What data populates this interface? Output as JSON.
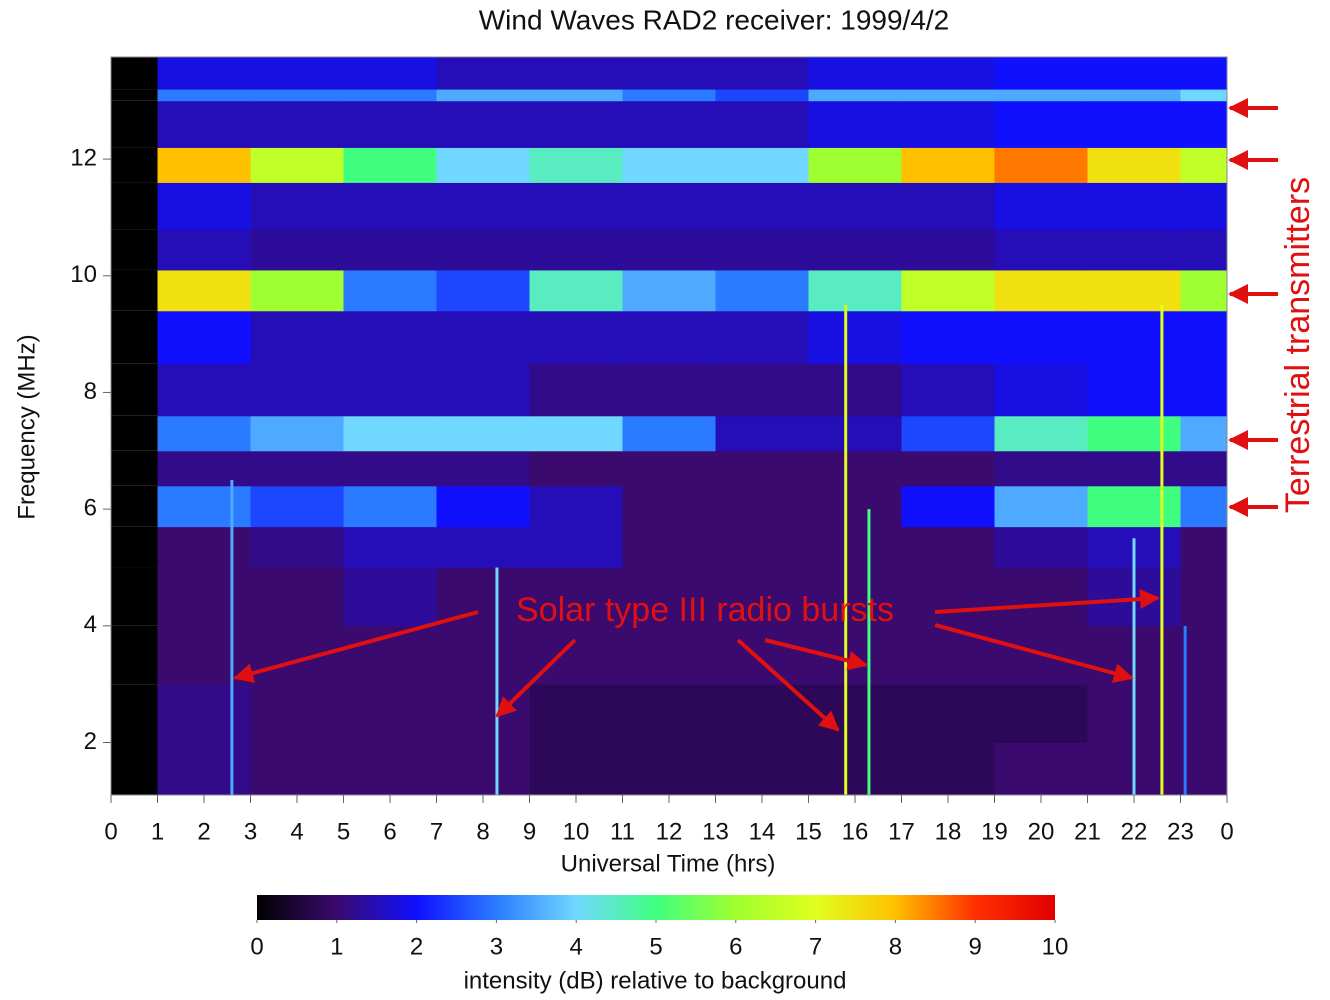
{
  "chart_data": {
    "type": "heatmap",
    "title": "Wind Waves RAD2 receiver: 1999/4/2",
    "x_label": "Universal Time (hrs)",
    "y_label": "Frequency (MHz)",
    "colorbar_label": "intensity (dB) relative to background",
    "xlim": [
      0,
      24
    ],
    "ylim": [
      1.1,
      13.75
    ],
    "xticks": [
      0,
      1,
      2,
      3,
      4,
      5,
      6,
      7,
      8,
      9,
      10,
      11,
      12,
      13,
      14,
      15,
      16,
      17,
      18,
      19,
      20,
      21,
      22,
      23,
      {
        "value": 24,
        "label": "0"
      }
    ],
    "yticks": [
      2,
      4,
      6,
      8,
      10,
      12
    ],
    "clim": [
      0,
      10
    ],
    "cticks": [
      0,
      1,
      2,
      3,
      4,
      5,
      6,
      7,
      8,
      9,
      10
    ],
    "colormap": [
      "#000000",
      "#3a0a6e",
      "#1010ff",
      "#2a7bff",
      "#70d8ff",
      "#40ff80",
      "#a0ff30",
      "#e0ff20",
      "#ffc000",
      "#ff3000",
      "#e00000"
    ],
    "x_bins": [
      0,
      1,
      3,
      5,
      7,
      9,
      11,
      13,
      15,
      17,
      19,
      21,
      23,
      24
    ],
    "y_bins": [
      1.1,
      2,
      3,
      4,
      5,
      5.7,
      6.4,
      7,
      7.6,
      8.5,
      9.4,
      10.1,
      10.8,
      11.6,
      12.2,
      13,
      13.2,
      13.75
    ],
    "values": [
      [
        null,
        1.2,
        1,
        1,
        1,
        0.8,
        0.8,
        0.8,
        0.8,
        0.8,
        1,
        1,
        1
      ],
      [
        null,
        1.2,
        1,
        1,
        1,
        0.8,
        0.8,
        0.8,
        0.8,
        0.8,
        0.8,
        1,
        1
      ],
      [
        null,
        1,
        1,
        1,
        1,
        1,
        1,
        1,
        1,
        1,
        1,
        1,
        1
      ],
      [
        null,
        1,
        1,
        1.3,
        1,
        1,
        1,
        1,
        1,
        1,
        1,
        1.3,
        1
      ],
      [
        null,
        1,
        1.2,
        1.5,
        1.5,
        1.5,
        1,
        1,
        1,
        1,
        1.3,
        1.5,
        1
      ],
      [
        null,
        3,
        2.5,
        3,
        2,
        1.5,
        1,
        1,
        1,
        2,
        3.5,
        5,
        3
      ],
      [
        null,
        1.2,
        1.2,
        1.2,
        1.2,
        1,
        1,
        1,
        1,
        1,
        1.2,
        1.2,
        1.2
      ],
      [
        null,
        3,
        3.5,
        4,
        4,
        4,
        3,
        1.5,
        1.5,
        2.5,
        4.5,
        5,
        3.5
      ],
      [
        null,
        1.5,
        1.5,
        1.5,
        1.5,
        1.2,
        1.2,
        1.2,
        1.2,
        1.5,
        1.8,
        2,
        2
      ],
      [
        null,
        2,
        1.5,
        1.5,
        1.5,
        1.5,
        1.5,
        1.5,
        1.8,
        2,
        2,
        2,
        2
      ],
      [
        null,
        7.5,
        6,
        3,
        2.5,
        4.5,
        3.5,
        3,
        4.5,
        6.5,
        7.5,
        7.5,
        6
      ],
      [
        null,
        1.5,
        1.3,
        1.3,
        1.3,
        1.3,
        1.3,
        1.3,
        1.3,
        1.3,
        1.5,
        1.5,
        1.5
      ],
      [
        null,
        1.8,
        1.5,
        1.5,
        1.5,
        1.5,
        1.5,
        1.5,
        1.5,
        1.5,
        1.8,
        1.8,
        1.8
      ],
      [
        null,
        8,
        6.5,
        5,
        4,
        4.5,
        4,
        4,
        6,
        8,
        8.5,
        7.5,
        6.5
      ],
      [
        null,
        1.5,
        1.5,
        1.5,
        1.5,
        1.5,
        1.5,
        1.5,
        1.8,
        1.8,
        2,
        2,
        2
      ],
      [
        null,
        3,
        3,
        3,
        3.5,
        3.5,
        3,
        2.5,
        3.5,
        3.5,
        3.5,
        3.5,
        4
      ],
      [
        null,
        1.8,
        1.8,
        1.8,
        1.5,
        1.5,
        1.5,
        1.5,
        1.8,
        1.8,
        2,
        2,
        2
      ]
    ],
    "bursts": [
      {
        "time": 2.6,
        "top": 6.5,
        "intensity": 3.5
      },
      {
        "time": 8.3,
        "top": 5,
        "intensity": 4
      },
      {
        "time": 15.8,
        "top": 9.5,
        "intensity": 7
      },
      {
        "time": 16.3,
        "top": 6,
        "intensity": 5
      },
      {
        "time": 22,
        "top": 5.5,
        "intensity": 4
      },
      {
        "time": 22.6,
        "top": 9.5,
        "intensity": 7
      },
      {
        "time": 23.1,
        "top": 4,
        "intensity": 3
      }
    ],
    "annotations": [
      "Solar type III radio bursts",
      "Terrestrial transmitters"
    ]
  }
}
